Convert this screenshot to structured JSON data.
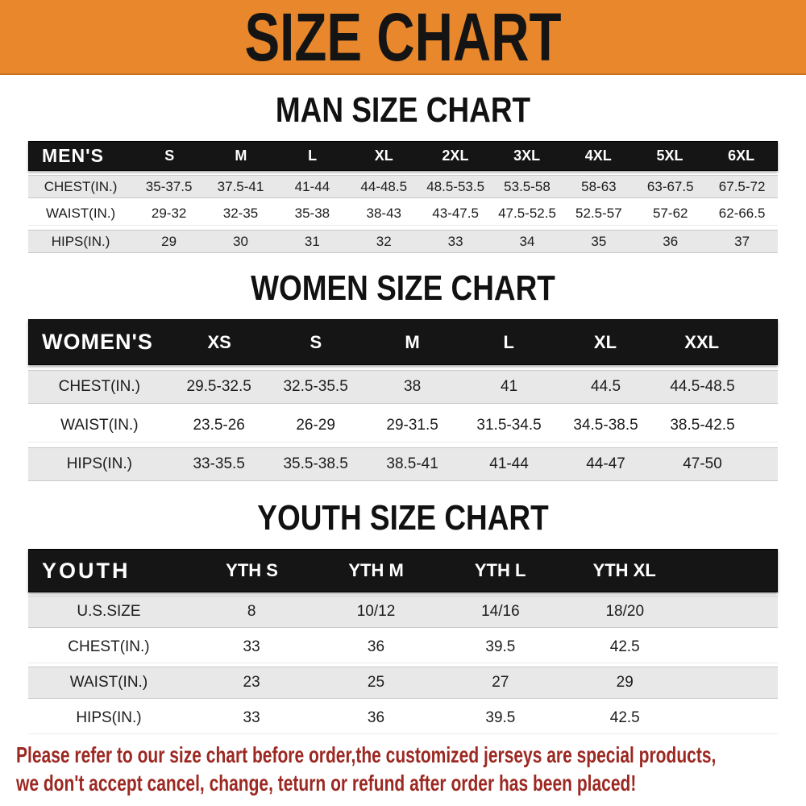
{
  "banner": {
    "title": "SIZE CHART",
    "bg_color": "#e8872b",
    "text_color": "#141414"
  },
  "sections": [
    {
      "title": "MAN SIZE CHART",
      "header": [
        "MEN'S",
        "S",
        "M",
        "L",
        "XL",
        "2XL",
        "3XL",
        "4XL",
        "5XL",
        "6XL"
      ],
      "rows": [
        [
          "CHEST(IN.)",
          "35-37.5",
          "37.5-41",
          "41-44",
          "44-48.5",
          "48.5-53.5",
          "53.5-58",
          "58-63",
          "63-67.5",
          "67.5-72"
        ],
        [
          "WAIST(IN.)",
          "29-32",
          "32-35",
          "35-38",
          "38-43",
          "43-47.5",
          "47.5-52.5",
          "52.5-57",
          "57-62",
          "62-66.5"
        ],
        [
          "HIPS(IN.)",
          "29",
          "30",
          "31",
          "32",
          "33",
          "34",
          "35",
          "36",
          "37"
        ]
      ]
    },
    {
      "title": "WOMEN SIZE CHART",
      "header": [
        "WOMEN'S",
        "XS",
        "S",
        "M",
        "L",
        "XL",
        "XXL"
      ],
      "rows": [
        [
          "CHEST(IN.)",
          "29.5-32.5",
          "32.5-35.5",
          "38",
          "41",
          "44.5",
          "44.5-48.5"
        ],
        [
          "WAIST(IN.)",
          "23.5-26",
          "26-29",
          "29-31.5",
          "31.5-34.5",
          "34.5-38.5",
          "38.5-42.5"
        ],
        [
          "HIPS(IN.)",
          "33-35.5",
          "35.5-38.5",
          "38.5-41",
          "41-44",
          "44-47",
          "47-50"
        ]
      ]
    },
    {
      "title": "YOUTH SIZE CHART",
      "header": [
        "YOUTH",
        "YTH S",
        "YTH M",
        "YTH L",
        "YTH XL"
      ],
      "rows": [
        [
          "U.S.SIZE",
          "8",
          "10/12",
          "14/16",
          "18/20"
        ],
        [
          "CHEST(IN.)",
          "33",
          "36",
          "39.5",
          "42.5"
        ],
        [
          "WAIST(IN.)",
          "23",
          "25",
          "27",
          "29"
        ],
        [
          "HIPS(IN.)",
          "33",
          "36",
          "39.5",
          "42.5"
        ]
      ]
    }
  ],
  "notice": {
    "line1": "Please refer to our size chart before order,the customized jerseys are special products,",
    "line2": "we don't accept cancel, change, teturn or refund after order has been placed!",
    "color": "#9c2822"
  }
}
